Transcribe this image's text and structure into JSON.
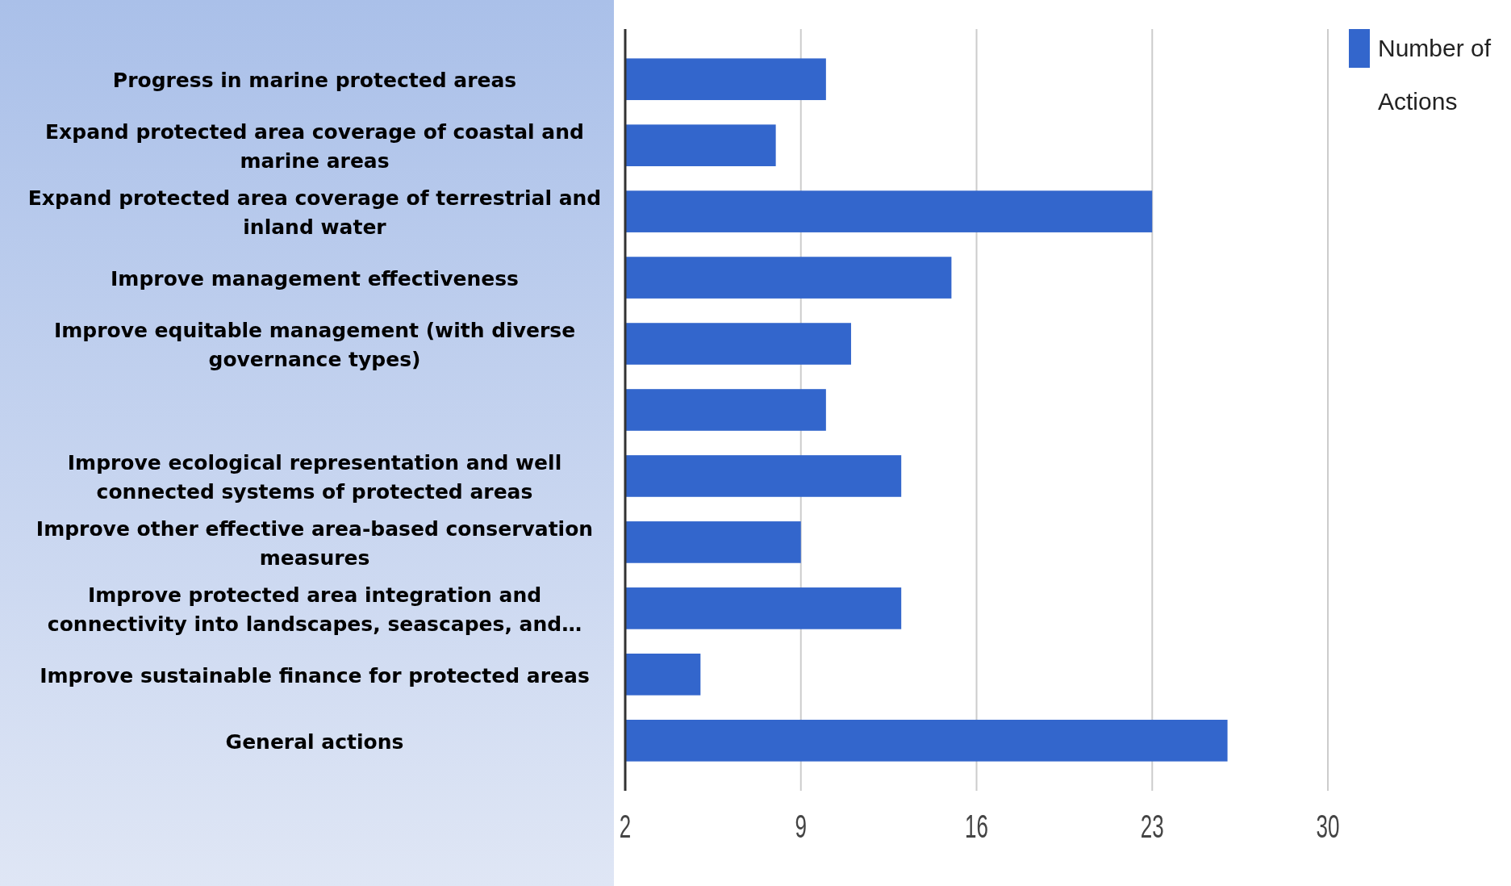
{
  "chart_data": {
    "type": "bar",
    "orientation": "horizontal",
    "categories": [
      "Progress in marine protected areas",
      "Expand protected area coverage of coastal and marine areas",
      "Expand protected area coverage of terrestrial and inland water",
      "Improve management effectiveness",
      "Improve equitable management (with diverse governance types)",
      null,
      "Improve ecological representation and well connected systems of protected areas",
      "Improve other effective area-based conservation measures",
      "Improve protected area integration and connectivity into landscapes, seascapes, and…",
      "Improve sustainable finance for protected areas",
      "General actions"
    ],
    "series": [
      {
        "name": "Number of Actions",
        "color": "#3366cc",
        "values": [
          10,
          8,
          23,
          15,
          11,
          10,
          13,
          9,
          13,
          5,
          26
        ]
      }
    ],
    "xlim": [
      2,
      30
    ],
    "xticks": [
      2,
      9,
      16,
      23,
      30
    ],
    "grid": "x",
    "legend": "top right"
  }
}
